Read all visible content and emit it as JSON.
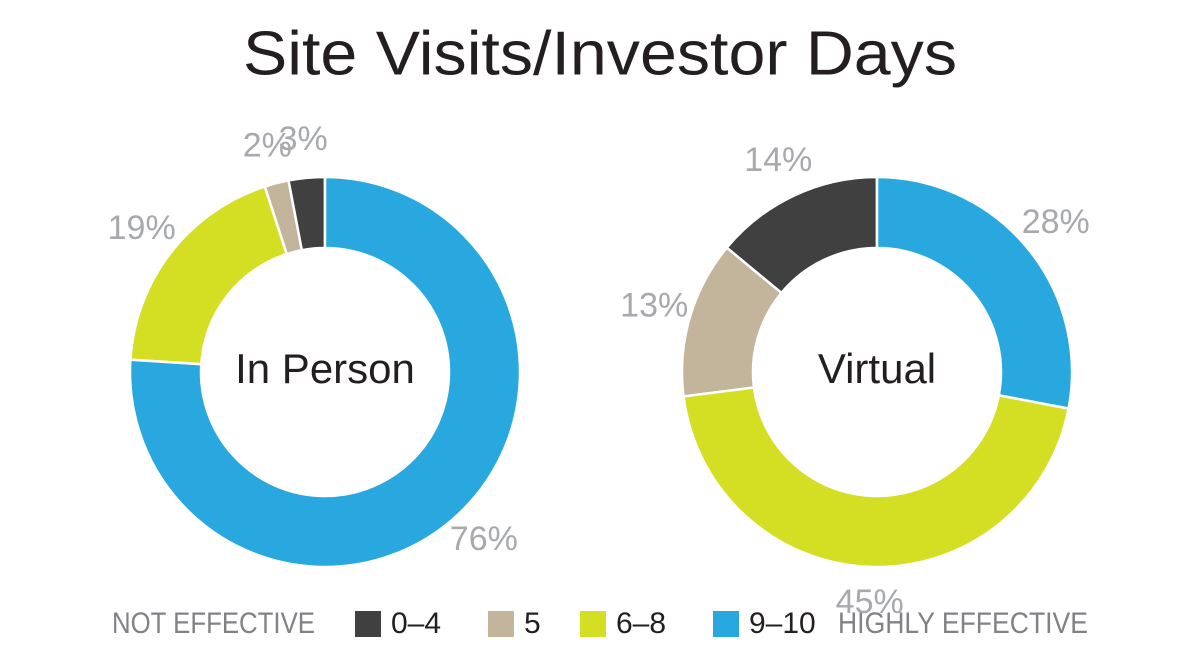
{
  "title": "Site Visits/Investor Days",
  "legend": {
    "left": "NOT EFFECTIVE",
    "right": "HIGHLY EFFECTIVE"
  },
  "chart_data": [
    {
      "type": "donut",
      "center_label": "In Person",
      "categories": [
        "0–4",
        "5",
        "6–8",
        "9–10"
      ],
      "values": [
        3,
        2,
        19,
        76
      ],
      "value_labels": [
        "3%",
        "2%",
        "19%",
        "76%"
      ],
      "colors": [
        "#404040",
        "#c2b59b",
        "#d4df24",
        "#29a8e0"
      ]
    },
    {
      "type": "donut",
      "center_label": "Virtual",
      "categories": [
        "0–4",
        "5",
        "6–8",
        "9–10"
      ],
      "values": [
        14,
        13,
        45,
        28
      ],
      "value_labels": [
        "14%",
        "13%",
        "45%",
        "28%"
      ],
      "colors": [
        "#404040",
        "#c2b59b",
        "#d4df24",
        "#29a8e0"
      ]
    }
  ]
}
